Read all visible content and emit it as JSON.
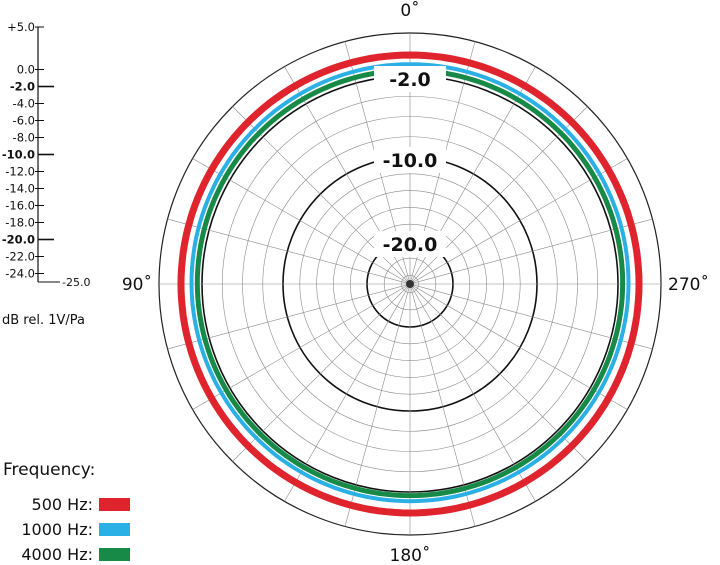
{
  "chart_data": {
    "type": "polar",
    "title": "",
    "scale": {
      "ticks": [
        "+5.0",
        "0.0",
        "-2.0",
        "-4.0",
        "-6.0",
        "-8.0",
        "-10.0",
        "-12.0",
        "-14.0",
        "-16.0",
        "-18.0",
        "-20.0",
        "-22.0",
        "-24.0",
        "-25.0"
      ],
      "tick_values": [
        5,
        0,
        -2,
        -4,
        -6,
        -8,
        -10,
        -12,
        -14,
        -16,
        -18,
        -20,
        -22,
        -24,
        -25
      ],
      "bold_ticks": [
        "-2.0",
        "-10.0",
        "-20.0"
      ],
      "unit_label": "dB rel. 1V/Pa",
      "range": [
        -25,
        5
      ]
    },
    "angle_labels": {
      "top": "0˚",
      "left": "90˚",
      "right": "270˚",
      "bottom": "180˚"
    },
    "ring_labels": [
      "-2.0",
      "-10.0",
      "-20.0"
    ],
    "legend": {
      "title": "Frequency:",
      "items": [
        {
          "label": "500 Hz:",
          "color": "#e0242e"
        },
        {
          "label": "1000 Hz:",
          "color": "#2bb0e6"
        },
        {
          "label": "4000 Hz:",
          "color": "#178a48"
        }
      ]
    },
    "series": [
      {
        "name": "500 Hz",
        "color": "#e0242e",
        "offset_db": 0.0,
        "rear_dip_db": 0.0
      },
      {
        "name": "1000 Hz",
        "color": "#2bb0e6",
        "offset_db": -0.4,
        "rear_dip_db": 0.0
      },
      {
        "name": "4000 Hz",
        "color": "#178a48",
        "offset_db": -0.6,
        "rear_dip_db": -0.2
      }
    ]
  }
}
